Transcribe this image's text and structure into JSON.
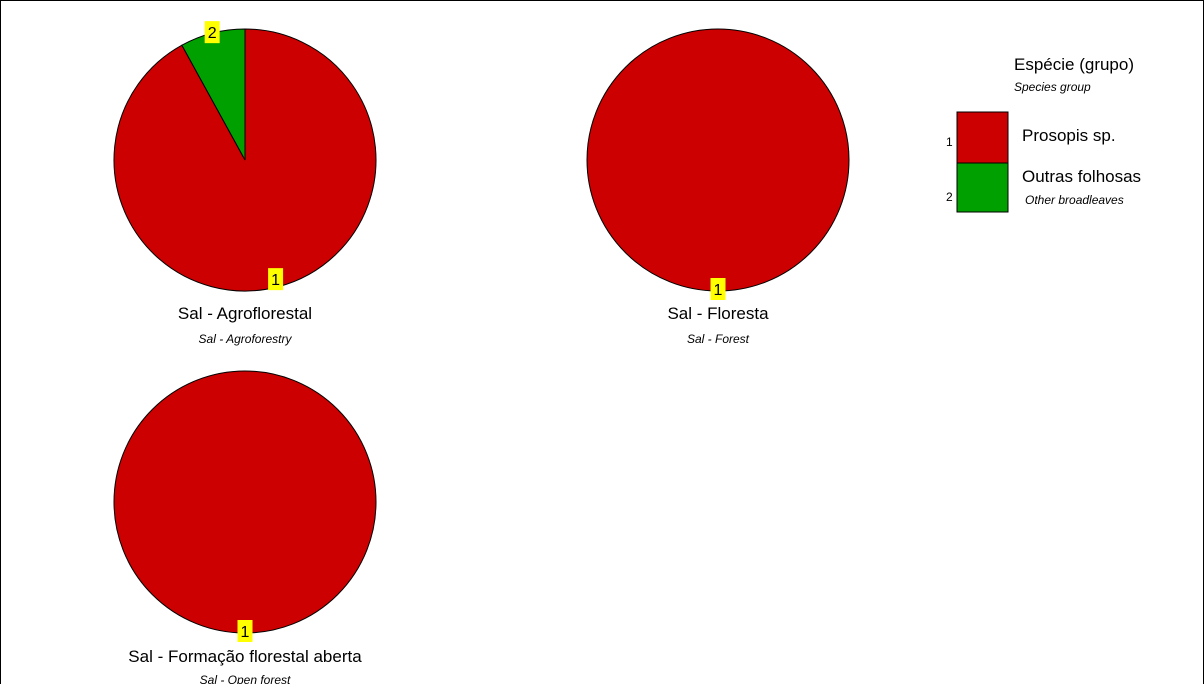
{
  "chart_data": {
    "type": "pie",
    "legend": {
      "title": "Espécie (grupo)",
      "subtitle": "Species group",
      "placement": "top-right",
      "entries": [
        {
          "id": "1",
          "label": "Prosopis sp.",
          "sublabel": "",
          "color": "#cc0000"
        },
        {
          "id": "2",
          "label": "Outras folhosas",
          "sublabel": "Other broadleaves",
          "color": "#00a000"
        }
      ]
    },
    "charts": [
      {
        "title": "Sal - Agroflorestal",
        "subtitle": "Sal - Agroforestry",
        "slices": [
          {
            "id": "1",
            "value": 92
          },
          {
            "id": "2",
            "value": 8
          }
        ]
      },
      {
        "title": "Sal - Floresta",
        "subtitle": "Sal - Forest",
        "slices": [
          {
            "id": "1",
            "value": 100
          }
        ]
      },
      {
        "title": "Sal - Formação florestal aberta",
        "subtitle": "Sal - Open forest",
        "slices": [
          {
            "id": "1",
            "value": 100
          }
        ]
      }
    ]
  }
}
